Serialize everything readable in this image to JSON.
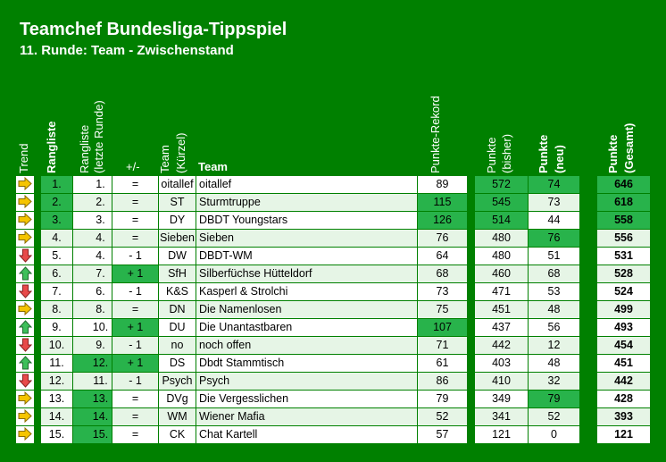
{
  "title": "Teamchef Bundesliga-Tippspiel",
  "subtitle": "11. Runde: Team - Zwischenstand",
  "headers": {
    "trend": "Trend",
    "rangliste": "Rangliste",
    "rangliste_letzte": "Rangliste",
    "rangliste_letzte2": "(letzte Runde)",
    "plusminus": "+/-",
    "team_kuerzel": "Team",
    "team_kuerzel2": "(Kürzel)",
    "team": "Team",
    "punkte_rekord": "Punkte-Rekord",
    "punkte_bisher": "Punkte",
    "punkte_bisher2": "(bisher)",
    "punkte_neu": "Punkte",
    "punkte_neu2": "(neu)",
    "punkte_gesamt": "Punkte",
    "punkte_gesamt2": "(Gesamt)"
  },
  "colors": {
    "background": "#008000",
    "highlight": "#28b34b",
    "row_alt": "#e6f5e6",
    "arrow_right": "#f5c400",
    "arrow_down": "#e84a4a",
    "arrow_up": "#3dbf5a"
  },
  "rows": [
    {
      "trend": "right",
      "rank": "1.",
      "last": "1.",
      "pm": "=",
      "short": "oitallef",
      "team": "oitallef",
      "rec": "89",
      "bisher": "572",
      "neu": "74",
      "ges": "646",
      "hl_rank": true,
      "hl_last": false,
      "hl_pm": false,
      "hl_rec": false,
      "hl_bisher": true,
      "hl_neu": true,
      "hl_ges": true
    },
    {
      "trend": "right",
      "rank": "2.",
      "last": "2.",
      "pm": "=",
      "short": "ST",
      "team": "Sturmtruppe",
      "rec": "115",
      "bisher": "545",
      "neu": "73",
      "ges": "618",
      "hl_rank": true,
      "hl_last": false,
      "hl_pm": false,
      "hl_rec": true,
      "hl_bisher": true,
      "hl_neu": false,
      "hl_ges": true
    },
    {
      "trend": "right",
      "rank": "3.",
      "last": "3.",
      "pm": "=",
      "short": "DY",
      "team": "DBDT Youngstars",
      "rec": "126",
      "bisher": "514",
      "neu": "44",
      "ges": "558",
      "hl_rank": true,
      "hl_last": false,
      "hl_pm": false,
      "hl_rec": true,
      "hl_bisher": true,
      "hl_neu": false,
      "hl_ges": true
    },
    {
      "trend": "right",
      "rank": "4.",
      "last": "4.",
      "pm": "=",
      "short": "Sieben",
      "team": "Sieben",
      "rec": "76",
      "bisher": "480",
      "neu": "76",
      "ges": "556",
      "hl_rank": false,
      "hl_last": false,
      "hl_pm": false,
      "hl_rec": false,
      "hl_bisher": false,
      "hl_neu": true,
      "hl_ges": false
    },
    {
      "trend": "down",
      "rank": "5.",
      "last": "4.",
      "pm": "- 1",
      "short": "DW",
      "team": "DBDT-WM",
      "rec": "64",
      "bisher": "480",
      "neu": "51",
      "ges": "531",
      "hl_rank": false,
      "hl_last": false,
      "hl_pm": false,
      "hl_rec": false,
      "hl_bisher": false,
      "hl_neu": false,
      "hl_ges": false
    },
    {
      "trend": "up",
      "rank": "6.",
      "last": "7.",
      "pm": "+ 1",
      "short": "SfH",
      "team": "Silberfüchse Hütteldorf",
      "rec": "68",
      "bisher": "460",
      "neu": "68",
      "ges": "528",
      "hl_rank": false,
      "hl_last": false,
      "hl_pm": true,
      "hl_rec": false,
      "hl_bisher": false,
      "hl_neu": false,
      "hl_ges": false
    },
    {
      "trend": "down",
      "rank": "7.",
      "last": "6.",
      "pm": "- 1",
      "short": "K&S",
      "team": "Kasperl & Strolchi",
      "rec": "73",
      "bisher": "471",
      "neu": "53",
      "ges": "524",
      "hl_rank": false,
      "hl_last": false,
      "hl_pm": false,
      "hl_rec": false,
      "hl_bisher": false,
      "hl_neu": false,
      "hl_ges": false
    },
    {
      "trend": "right",
      "rank": "8.",
      "last": "8.",
      "pm": "=",
      "short": "DN",
      "team": "Die Namenlosen",
      "rec": "75",
      "bisher": "451",
      "neu": "48",
      "ges": "499",
      "hl_rank": false,
      "hl_last": false,
      "hl_pm": false,
      "hl_rec": false,
      "hl_bisher": false,
      "hl_neu": false,
      "hl_ges": false
    },
    {
      "trend": "up",
      "rank": "9.",
      "last": "10.",
      "pm": "+ 1",
      "short": "DU",
      "team": "Die Unantastbaren",
      "rec": "107",
      "bisher": "437",
      "neu": "56",
      "ges": "493",
      "hl_rank": false,
      "hl_last": false,
      "hl_pm": true,
      "hl_rec": true,
      "hl_bisher": false,
      "hl_neu": false,
      "hl_ges": false
    },
    {
      "trend": "down",
      "rank": "10.",
      "last": "9.",
      "pm": "- 1",
      "short": "no",
      "team": "noch offen",
      "rec": "71",
      "bisher": "442",
      "neu": "12",
      "ges": "454",
      "hl_rank": false,
      "hl_last": false,
      "hl_pm": false,
      "hl_rec": false,
      "hl_bisher": false,
      "hl_neu": false,
      "hl_ges": false
    },
    {
      "trend": "up",
      "rank": "11.",
      "last": "12.",
      "pm": "+ 1",
      "short": "DS",
      "team": "Dbdt Stammtisch",
      "rec": "61",
      "bisher": "403",
      "neu": "48",
      "ges": "451",
      "hl_rank": false,
      "hl_last": true,
      "hl_pm": true,
      "hl_rec": false,
      "hl_bisher": false,
      "hl_neu": false,
      "hl_ges": false
    },
    {
      "trend": "down",
      "rank": "12.",
      "last": "11.",
      "pm": "- 1",
      "short": "Psych",
      "team": "Psych",
      "rec": "86",
      "bisher": "410",
      "neu": "32",
      "ges": "442",
      "hl_rank": false,
      "hl_last": false,
      "hl_pm": false,
      "hl_rec": false,
      "hl_bisher": false,
      "hl_neu": false,
      "hl_ges": false
    },
    {
      "trend": "right",
      "rank": "13.",
      "last": "13.",
      "pm": "=",
      "short": "DVg",
      "team": "Die Vergesslichen",
      "rec": "79",
      "bisher": "349",
      "neu": "79",
      "ges": "428",
      "hl_rank": false,
      "hl_last": true,
      "hl_pm": false,
      "hl_rec": false,
      "hl_bisher": false,
      "hl_neu": true,
      "hl_ges": false
    },
    {
      "trend": "right",
      "rank": "14.",
      "last": "14.",
      "pm": "=",
      "short": "WM",
      "team": "Wiener Mafia",
      "rec": "52",
      "bisher": "341",
      "neu": "52",
      "ges": "393",
      "hl_rank": false,
      "hl_last": true,
      "hl_pm": false,
      "hl_rec": false,
      "hl_bisher": false,
      "hl_neu": false,
      "hl_ges": false
    },
    {
      "trend": "right",
      "rank": "15.",
      "last": "15.",
      "pm": "=",
      "short": "CK",
      "team": "Chat Kartell",
      "rec": "57",
      "bisher": "121",
      "neu": "0",
      "ges": "121",
      "hl_rank": false,
      "hl_last": true,
      "hl_pm": false,
      "hl_rec": false,
      "hl_bisher": false,
      "hl_neu": false,
      "hl_ges": false
    }
  ]
}
